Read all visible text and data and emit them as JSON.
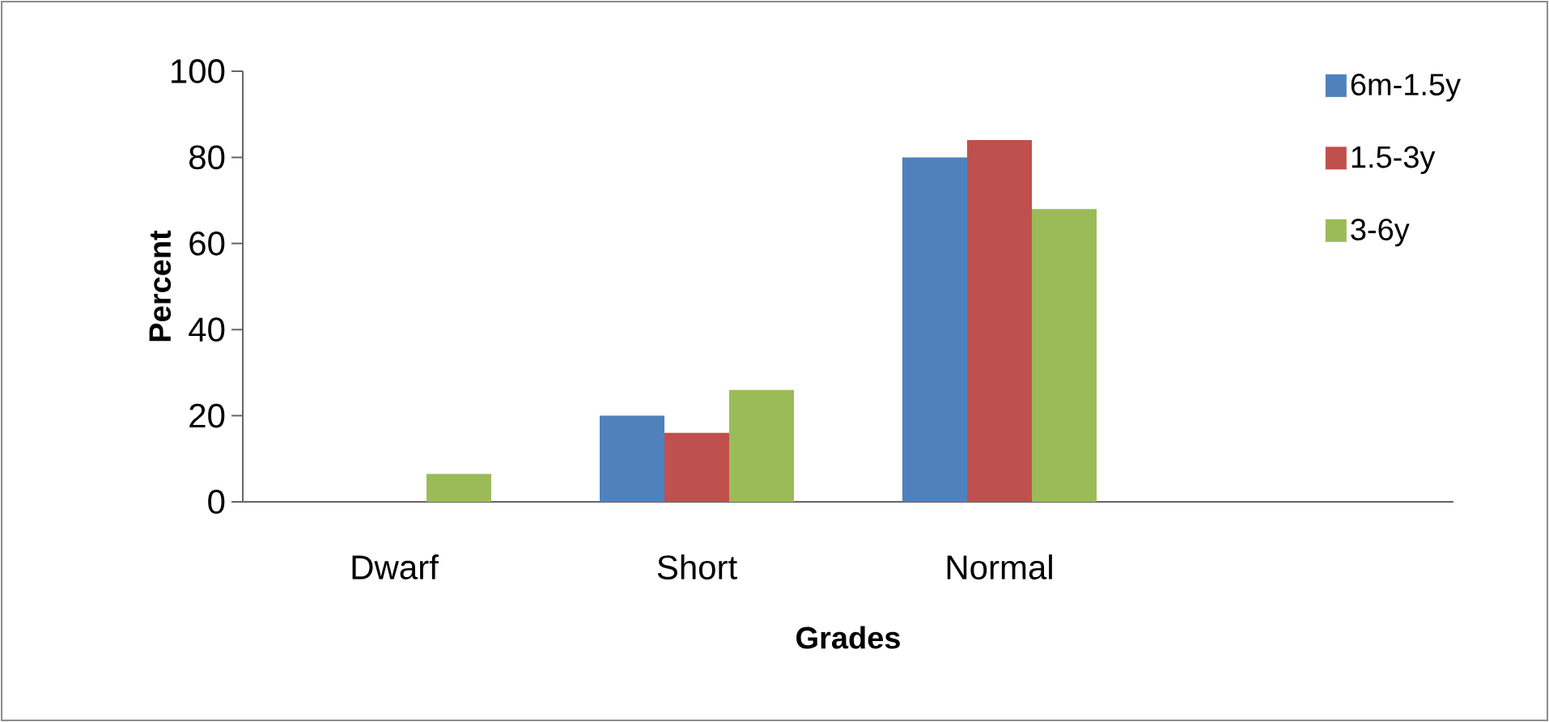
{
  "chart_data": {
    "type": "bar",
    "xlabel": "Grades",
    "ylabel": "Percent",
    "categories": [
      "Dwarf",
      "Short",
      "Normal",
      null
    ],
    "series": [
      {
        "name": "6m-1.5y",
        "color": "#4f81bd",
        "values": [
          null,
          20,
          80,
          null
        ]
      },
      {
        "name": "1.5-3y",
        "color": "#c0504d",
        "values": [
          null,
          16,
          84,
          null
        ]
      },
      {
        "name": "3-6y",
        "color": "#9bbb59",
        "values": [
          6.5,
          26,
          68,
          null
        ]
      }
    ],
    "ylim": [
      0,
      100
    ],
    "yticks": [
      0,
      20,
      40,
      60,
      80,
      100
    ],
    "legend": "top right"
  }
}
